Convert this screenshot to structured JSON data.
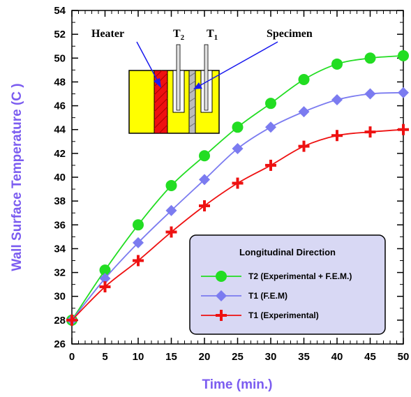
{
  "chart_data": {
    "type": "line",
    "xlabel": "Time (min.)",
    "ylabel": "Wall Surface Temperature (C )",
    "xlim": [
      0,
      50
    ],
    "ylim": [
      26,
      54
    ],
    "x_ticks": [
      "0",
      "5",
      "10",
      "15",
      "20",
      "25",
      "30",
      "35",
      "40",
      "45",
      "50"
    ],
    "y_ticks": [
      "26",
      "28",
      "30",
      "32",
      "34",
      "36",
      "38",
      "40",
      "42",
      "44",
      "46",
      "48",
      "50",
      "52",
      "54"
    ],
    "x": [
      0,
      5,
      10,
      15,
      20,
      25,
      30,
      35,
      40,
      45,
      50
    ],
    "legend_title": "Longitudinal Direction",
    "legend_position": "bottom-right",
    "grid": false,
    "series": [
      {
        "name": "T2 (Experimental + F.E.M.)",
        "marker": "circle",
        "color": "#22dd22",
        "values": [
          28.0,
          32.2,
          36.0,
          39.3,
          41.8,
          44.2,
          46.2,
          48.2,
          49.5,
          50.0,
          50.2
        ]
      },
      {
        "name": "T1 (F.E.M)",
        "marker": "diamond",
        "color": "#7b7bf0",
        "values": [
          28.0,
          31.5,
          34.5,
          37.2,
          39.8,
          42.4,
          44.2,
          45.5,
          46.5,
          47.0,
          47.1
        ]
      },
      {
        "name": "T1 (Experimental)",
        "marker": "plus",
        "color": "#ee1111",
        "values": [
          28.0,
          30.8,
          33.0,
          35.4,
          37.6,
          39.5,
          41.0,
          42.6,
          43.5,
          43.8,
          44.0
        ]
      }
    ],
    "inset": {
      "heater_label": "Heater",
      "t2_label": "T",
      "t2_sub": "2",
      "t1_label": "T",
      "t1_sub": "1",
      "specimen_label": "Specimen"
    }
  }
}
